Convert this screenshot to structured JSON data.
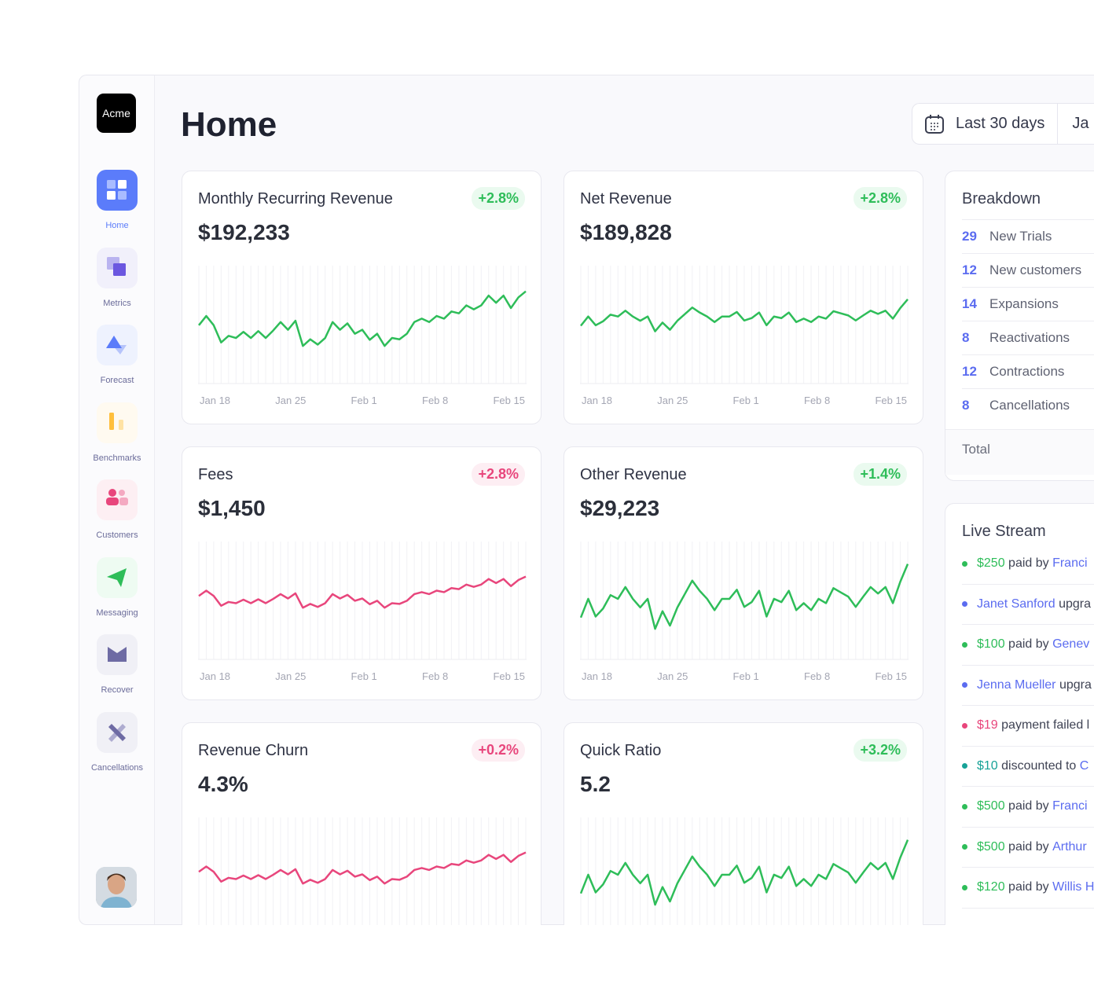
{
  "brand": "Acme",
  "sidebar": {
    "items": [
      {
        "label": "Home",
        "icon": "home-grid-icon",
        "active": true
      },
      {
        "label": "Metrics",
        "icon": "metrics-squares-icon"
      },
      {
        "label": "Forecast",
        "icon": "forecast-triangle-icon"
      },
      {
        "label": "Benchmarks",
        "icon": "benchmarks-bars-icon"
      },
      {
        "label": "Customers",
        "icon": "customers-people-icon"
      },
      {
        "label": "Messaging",
        "icon": "messaging-send-icon"
      },
      {
        "label": "Recover",
        "icon": "recover-mail-icon"
      },
      {
        "label": "Cancellations",
        "icon": "cancellations-x-icon"
      }
    ]
  },
  "header": {
    "title": "Home",
    "date_range": "Last 30 days",
    "date_start_partial": "Ja"
  },
  "colors": {
    "green": "#2ebd59",
    "pink": "#e8467c",
    "blue": "#5b6cf0",
    "teal": "#17a297"
  },
  "chart_data": [
    {
      "type": "line",
      "title": "Monthly Recurring Revenue",
      "value": "$192,233",
      "change": "+2.8%",
      "trend": "good",
      "color": "#2ebd59",
      "x_ticks": [
        "Jan 18",
        "Jan 25",
        "Feb 1",
        "Feb 8",
        "Feb 15"
      ],
      "ylim": [
        0,
        44.5
      ],
      "values": [
        22.0,
        25.5,
        22.0,
        15.5,
        18.0,
        17.2,
        19.5,
        17.2,
        19.8,
        17.2,
        20.0,
        23.2,
        20.3,
        23.7,
        14.2,
        16.7,
        14.7,
        17.2,
        23.2,
        20.3,
        22.7,
        18.8,
        20.3,
        16.5,
        18.8,
        14.2,
        17.2,
        16.7,
        18.8,
        23.2,
        24.5,
        23.2,
        25.5,
        24.5,
        27.2,
        26.5,
        29.5,
        28.0,
        29.5,
        33.2,
        30.5,
        33.2,
        28.5,
        32.5,
        34.8
      ]
    },
    {
      "type": "line",
      "title": "Net Revenue",
      "value": "$189,828",
      "change": "+2.8%",
      "trend": "good",
      "color": "#2ebd59",
      "x_ticks": [
        "Jan 18",
        "Jan 25",
        "Feb 1",
        "Feb 8",
        "Feb 15"
      ],
      "ylim": [
        0,
        44.5
      ],
      "values": [
        21.8,
        25.3,
        22.0,
        23.5,
        26.0,
        25.3,
        27.5,
        25.3,
        23.7,
        25.3,
        19.7,
        23.0,
        20.3,
        23.7,
        26.2,
        28.7,
        26.8,
        25.3,
        23.2,
        25.3,
        25.3,
        27.0,
        23.8,
        24.7,
        26.8,
        22.0,
        25.3,
        24.7,
        26.8,
        23.2,
        24.5,
        23.2,
        25.3,
        24.5,
        27.3,
        26.5,
        25.7,
        23.8,
        25.7,
        27.5,
        26.3,
        27.5,
        24.5,
        28.5,
        31.8
      ]
    },
    {
      "type": "line",
      "title": "Fees",
      "value": "$1,450",
      "change": "+2.8%",
      "trend": "bad",
      "color": "#e8467c",
      "x_ticks": [
        "Jan 18",
        "Jan 25",
        "Feb 1",
        "Feb 8",
        "Feb 15"
      ],
      "ylim": [
        -20,
        58
      ],
      "values": [
        22.0,
        25.5,
        22.0,
        15.5,
        18.0,
        17.2,
        19.5,
        17.2,
        19.8,
        17.2,
        20.0,
        23.2,
        20.3,
        23.7,
        14.2,
        16.7,
        14.7,
        17.2,
        23.2,
        20.3,
        22.7,
        18.8,
        20.3,
        16.5,
        18.8,
        14.2,
        17.2,
        16.7,
        18.8,
        23.2,
        24.5,
        23.2,
        25.5,
        24.5,
        27.2,
        26.5,
        29.5,
        28.0,
        29.5,
        33.2,
        30.5,
        33.2,
        28.5,
        32.5,
        34.8
      ]
    },
    {
      "type": "line",
      "title": "Other Revenue",
      "value": "$29,223",
      "change": "+1.4%",
      "trend": "good",
      "color": "#2ebd59",
      "x_ticks": [
        "Jan 18",
        "Jan 25",
        "Feb 1",
        "Feb 8",
        "Feb 15"
      ],
      "ylim": [
        14,
        36
      ],
      "values": [
        21.8,
        25.3,
        22.0,
        23.5,
        26.0,
        25.3,
        27.5,
        25.3,
        23.7,
        25.3,
        19.7,
        23.0,
        20.3,
        23.7,
        26.2,
        28.7,
        26.8,
        25.3,
        23.2,
        25.3,
        25.3,
        27.0,
        23.8,
        24.7,
        26.8,
        22.0,
        25.3,
        24.7,
        26.8,
        23.2,
        24.5,
        23.2,
        25.3,
        24.5,
        27.3,
        26.5,
        25.7,
        23.8,
        25.7,
        27.5,
        26.3,
        27.5,
        24.5,
        28.5,
        31.8
      ]
    },
    {
      "type": "line",
      "title": "Revenue Churn",
      "value": "4.3%",
      "change": "+0.2%",
      "trend": "bad",
      "color": "#e8467c",
      "x_ticks": [],
      "ylim": [
        -20,
        58
      ],
      "values": [
        22.0,
        25.5,
        22.0,
        15.5,
        18.0,
        17.2,
        19.5,
        17.2,
        19.8,
        17.2,
        20.0,
        23.2,
        20.3,
        23.7,
        14.2,
        16.7,
        14.7,
        17.2,
        23.2,
        20.3,
        22.7,
        18.8,
        20.3,
        16.5,
        18.8,
        14.2,
        17.2,
        16.7,
        18.8,
        23.2,
        24.5,
        23.2,
        25.5,
        24.5,
        27.2,
        26.5,
        29.5,
        28.0,
        29.5,
        33.2,
        30.5,
        33.2,
        28.5,
        32.5,
        34.8
      ]
    },
    {
      "type": "line",
      "title": "Quick Ratio",
      "value": "5.2",
      "change": "+3.2%",
      "trend": "good",
      "color": "#2ebd59",
      "x_ticks": [],
      "ylim": [
        14,
        36
      ],
      "values": [
        21.8,
        25.3,
        22.0,
        23.5,
        26.0,
        25.3,
        27.5,
        25.3,
        23.7,
        25.3,
        19.7,
        23.0,
        20.3,
        23.7,
        26.2,
        28.7,
        26.8,
        25.3,
        23.2,
        25.3,
        25.3,
        27.0,
        23.8,
        24.7,
        26.8,
        22.0,
        25.3,
        24.7,
        26.8,
        23.2,
        24.5,
        23.2,
        25.3,
        24.5,
        27.3,
        26.5,
        25.7,
        23.8,
        25.7,
        27.5,
        26.3,
        27.5,
        24.5,
        28.5,
        31.8
      ]
    }
  ],
  "breakdown": {
    "title": "Breakdown",
    "rows": [
      {
        "count": "29",
        "label": "New Trials"
      },
      {
        "count": "12",
        "label": "New customers"
      },
      {
        "count": "14",
        "label": "Expansions"
      },
      {
        "count": "8",
        "label": "Reactivations"
      },
      {
        "count": "12",
        "label": "Contractions"
      },
      {
        "count": "8",
        "label": "Cancellations"
      }
    ],
    "total_label": "Total"
  },
  "live_stream": {
    "title": "Live Stream",
    "items": [
      {
        "kind": "green",
        "a": "$250",
        "b": " paid by ",
        "c": "Franci"
      },
      {
        "kind": "blue",
        "a": "Janet Sanford",
        "b": " upgra",
        "c": ""
      },
      {
        "kind": "green",
        "a": "$100",
        "b": " paid by ",
        "c": "Genev"
      },
      {
        "kind": "blue",
        "a": "Jenna Mueller",
        "b": " upgra",
        "c": ""
      },
      {
        "kind": "pink",
        "a": "$19",
        "b": " payment failed l",
        "c": ""
      },
      {
        "kind": "teal",
        "a": "$10",
        "b": " discounted to ",
        "c": "C"
      },
      {
        "kind": "green",
        "a": "$500",
        "b": " paid by ",
        "c": "Franci"
      },
      {
        "kind": "green",
        "a": "$500",
        "b": " paid by ",
        "c": "Arthur"
      },
      {
        "kind": "green",
        "a": "$120",
        "b": " paid by ",
        "c": "Willis H"
      }
    ]
  }
}
